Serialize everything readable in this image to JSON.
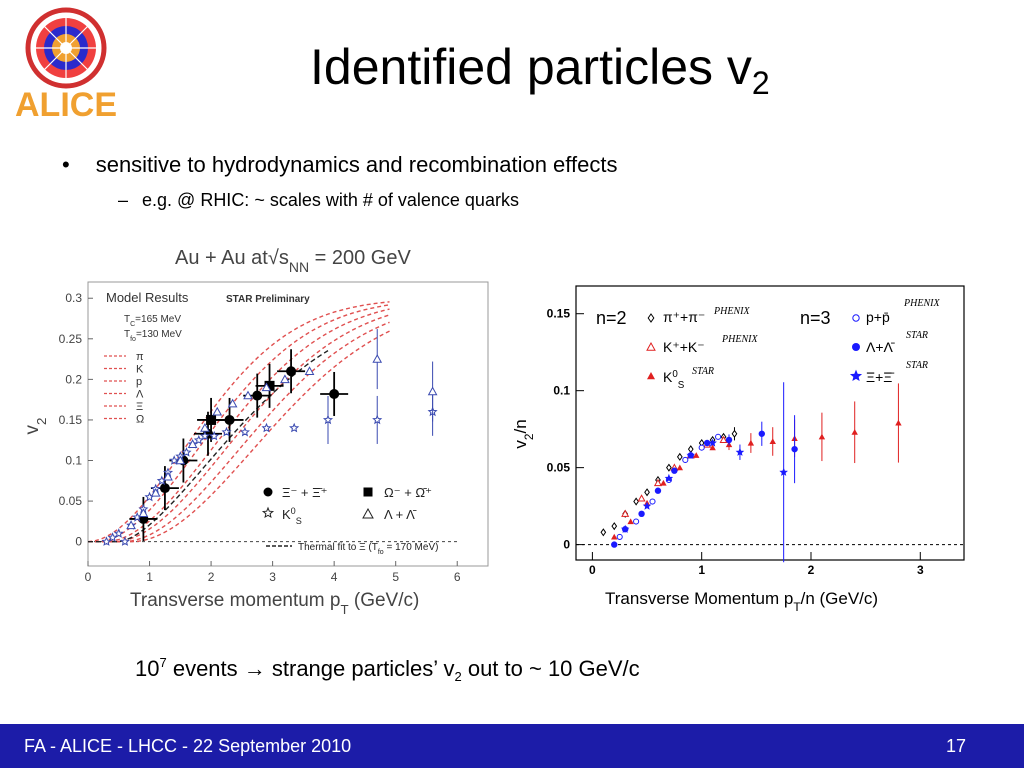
{
  "logo": {
    "text": "ALICE"
  },
  "title": {
    "main": "Identified particles v",
    "sub": "2"
  },
  "bullets": {
    "b1_marker": "•",
    "b1": "sensitive to hydrodynamics and recombination effects",
    "b2_marker": "–",
    "b2": "e.g. @ RHIC: ~ scales with # of valence quarks"
  },
  "events": {
    "pre": "10",
    "exp": "7",
    "mid": " events ",
    "arrow": "→",
    "text": " strange particles’ v",
    "sub": "2",
    "post": " out to ~ 10 GeV/c"
  },
  "footer": {
    "left": "FA - ALICE - LHCC - 22 September 2010",
    "page": "17"
  },
  "chart_data": [
    {
      "type": "scatter",
      "title": "Au + Au at√s",
      "title_sub": "NN",
      "title_post": " = 200 GeV",
      "xlabel": "Transverse momentum p",
      "xlabel_sub": "T",
      "xlabel_post": " (GeV/c)",
      "ylabel": "v",
      "ylabel_sub": "2",
      "xlim": [
        0,
        6.5
      ],
      "ylim": [
        -0.03,
        0.32
      ],
      "xticks": [
        "0",
        "1",
        "2",
        "3",
        "4",
        "5",
        "6"
      ],
      "yticks": [
        "0",
        "0.05",
        "0.1",
        "0.15",
        "0.2",
        "0.25",
        "0.3"
      ],
      "annotations": {
        "model_results": "Model Results",
        "star_preliminary": "STAR Preliminary",
        "tc": "T",
        "tc_sub": "C",
        "tc_val": "=165 MeV",
        "tfo": "T",
        "tfo_sub": "fo",
        "tfo_val": "=130 MeV",
        "model_labels": [
          "π",
          "K",
          "p",
          "Λ",
          "Ξ",
          "Ω"
        ]
      },
      "legend": {
        "xi": "Ξ⁻ + Ξ̄⁺",
        "omega": "Ω⁻ + Ω̄⁺",
        "ks": "K",
        "ks_sup": "0",
        "ks_sub": "S",
        "lambda": "Λ + Λ̄",
        "thermal": "Thermal fit to Ξ (T",
        "thermal_sub": "fo",
        "thermal_post": " = 170 MeV)"
      },
      "series": [
        {
          "name": "Ξ⁻ + Ξ̄⁺",
          "marker": "filled-circle",
          "x": [
            0.9,
            1.25,
            1.55,
            1.95,
            2.3,
            2.75,
            3.3,
            4.0
          ],
          "y": [
            0.028,
            0.066,
            0.1,
            0.133,
            0.15,
            0.18,
            0.21,
            0.182
          ]
        },
        {
          "name": "Ω⁻ + Ω̄⁺",
          "marker": "filled-square",
          "x": [
            2.0,
            2.95
          ],
          "y": [
            0.15,
            0.192
          ]
        },
        {
          "name": "K⁰S",
          "marker": "open-star",
          "x": [
            0.3,
            0.4,
            0.5,
            0.6,
            0.7,
            0.8,
            0.9,
            1.0,
            1.1,
            1.2,
            1.3,
            1.4,
            1.5,
            1.6,
            1.7,
            1.8,
            1.9,
            2.05,
            2.25,
            2.55,
            2.9,
            3.35,
            3.9,
            4.7,
            5.6
          ],
          "y": [
            0.0,
            0.005,
            0.01,
            0.0,
            0.02,
            0.03,
            0.04,
            0.055,
            0.065,
            0.075,
            0.085,
            0.1,
            0.105,
            0.11,
            0.12,
            0.125,
            0.13,
            0.13,
            0.135,
            0.135,
            0.14,
            0.14,
            0.15,
            0.15,
            0.16
          ]
        },
        {
          "name": "Λ + Λ̄",
          "marker": "open-triangle",
          "x": [
            0.7,
            0.9,
            1.1,
            1.3,
            1.5,
            1.7,
            1.9,
            2.1,
            2.35,
            2.6,
            2.9,
            3.2,
            3.6,
            4.7,
            5.6
          ],
          "y": [
            0.02,
            0.035,
            0.06,
            0.08,
            0.1,
            0.12,
            0.14,
            0.16,
            0.17,
            0.18,
            0.19,
            0.2,
            0.21,
            0.225,
            0.185
          ]
        }
      ]
    },
    {
      "type": "scatter",
      "xlabel": "Transverse Momentum p",
      "xlabel_sub": "T",
      "xlabel_post": "/n (GeV/c)",
      "ylabel": "v",
      "ylabel_sub": "2",
      "ylabel_post": "/n",
      "xlim": [
        -0.15,
        3.4
      ],
      "ylim": [
        -0.01,
        0.168
      ],
      "xticks": [
        "0",
        "1",
        "2",
        "3"
      ],
      "yticks": [
        "0",
        "0.05",
        "0.1",
        "0.15"
      ],
      "legend": {
        "n2": "n=2",
        "n3": "n=3",
        "pipi": "π⁺+π⁻",
        "kk": "K⁺+K⁻",
        "k0s": "K",
        "k0s_sup": "0",
        "k0s_sub": "S",
        "pp": "p+p̄",
        "ll": "Λ+Λ̄",
        "xx": "Ξ+Ξ̄",
        "phenix": "PHENIX",
        "star": "STAR"
      },
      "series": [
        {
          "name": "π⁺+π⁻",
          "marker": "open-diamond",
          "color": "#000000",
          "x": [
            0.1,
            0.2,
            0.3,
            0.4,
            0.5,
            0.6,
            0.7,
            0.8,
            0.9,
            1.0,
            1.1,
            1.2,
            1.3
          ],
          "y": [
            0.008,
            0.012,
            0.02,
            0.028,
            0.034,
            0.042,
            0.05,
            0.057,
            0.062,
            0.066,
            0.068,
            0.07,
            0.072
          ]
        },
        {
          "name": "K⁺+K⁻",
          "marker": "open-triangle",
          "color": "#e02020",
          "x": [
            0.3,
            0.45,
            0.6,
            0.75,
            0.9,
            1.05,
            1.2
          ],
          "y": [
            0.02,
            0.03,
            0.04,
            0.05,
            0.058,
            0.065,
            0.068
          ]
        },
        {
          "name": "K⁰S",
          "marker": "filled-triangle",
          "color": "#e02020",
          "x": [
            0.2,
            0.35,
            0.5,
            0.65,
            0.8,
            0.95,
            1.1,
            1.25,
            1.45,
            1.65,
            1.85,
            2.1,
            2.4,
            2.8
          ],
          "y": [
            0.005,
            0.015,
            0.027,
            0.04,
            0.05,
            0.058,
            0.063,
            0.065,
            0.066,
            0.067,
            0.069,
            0.07,
            0.073,
            0.079
          ]
        },
        {
          "name": "p+p̄",
          "marker": "open-circle",
          "color": "#1a1aff",
          "x": [
            0.25,
            0.4,
            0.55,
            0.7,
            0.85,
            1.0,
            1.15
          ],
          "y": [
            0.005,
            0.015,
            0.028,
            0.042,
            0.055,
            0.063,
            0.07
          ]
        },
        {
          "name": "Λ+Λ̄",
          "marker": "filled-circle",
          "color": "#1a1aff",
          "x": [
            0.2,
            0.3,
            0.45,
            0.6,
            0.75,
            0.9,
            1.05,
            1.25,
            1.55,
            1.85
          ],
          "y": [
            0.0,
            0.01,
            0.02,
            0.035,
            0.048,
            0.058,
            0.066,
            0.068,
            0.072,
            0.062
          ]
        },
        {
          "name": "Ξ+Ξ̄",
          "marker": "filled-star",
          "color": "#1a1aff",
          "x": [
            0.3,
            0.5,
            0.7,
            0.9,
            1.1,
            1.35,
            1.75
          ],
          "y": [
            0.01,
            0.025,
            0.043,
            0.058,
            0.066,
            0.06,
            0.047
          ]
        }
      ]
    }
  ],
  "colors": {
    "footer_bg": "#1c1ca8",
    "red": "#e02020",
    "blue": "#1a1aff",
    "logo_orange": "#f0a030"
  },
  "icons": {
    "logo": "alice-logo"
  }
}
